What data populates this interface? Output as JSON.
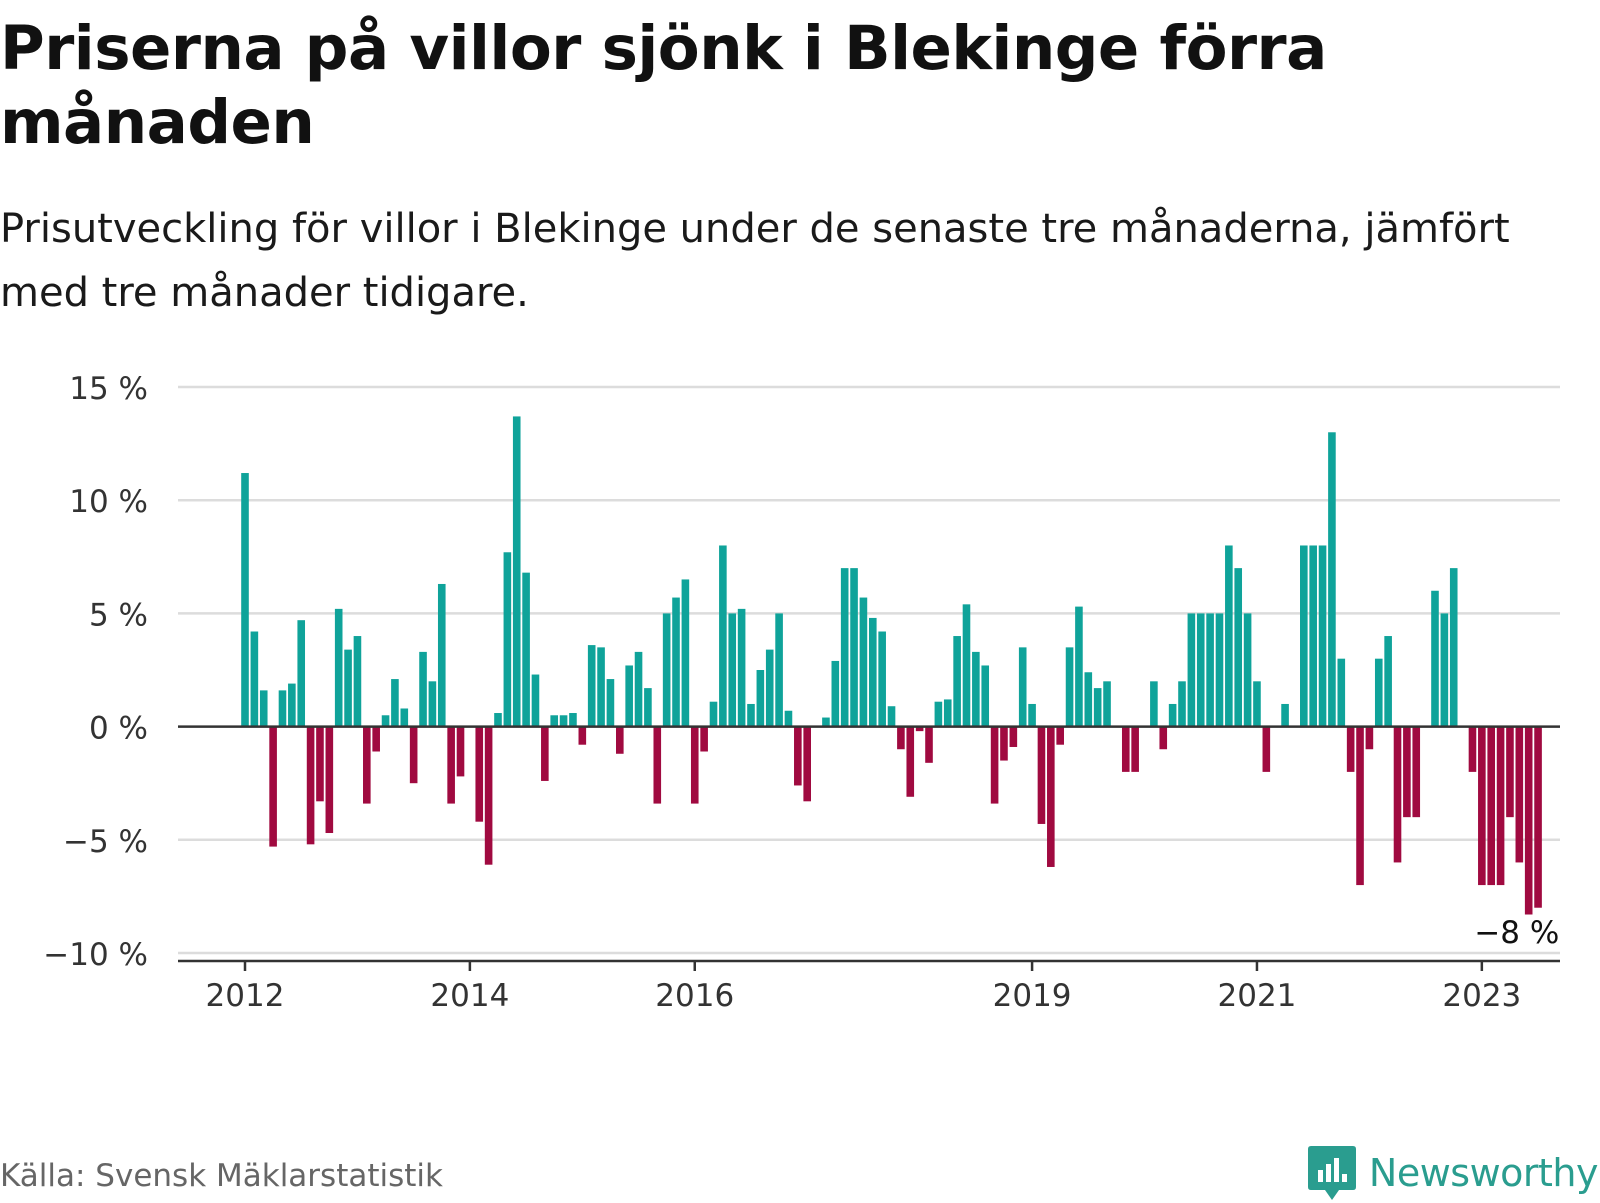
{
  "title": "Priserna på villor sjönk i Blekinge förra månaden",
  "subtitle": "Prisutveckling för villor i Blekinge under de senaste tre månaderna, jämfört med tre månader tidigare.",
  "source": "Källa: Svensk Mäklarstatistik",
  "brand": "Newsworthy",
  "colors": {
    "positive": "#0fa39a",
    "negative": "#a00a40",
    "grid": "#dcdcdc",
    "axis": "#333333",
    "brand": "#2a9d8f"
  },
  "chart_data": {
    "type": "bar",
    "ylim": [
      -10,
      15
    ],
    "yticks": [
      15,
      10,
      5,
      0,
      -5,
      -10
    ],
    "ytick_labels": [
      "15 %",
      "10 %",
      "5 %",
      "0 %",
      "−5 %",
      "−10 %"
    ],
    "x_start": "2012-01",
    "xtick_labels": [
      {
        "label": "2012",
        "month": "2012-01"
      },
      {
        "label": "2014",
        "month": "2014-01"
      },
      {
        "label": "2016",
        "month": "2016-01"
      },
      {
        "label": "2019",
        "month": "2019-01"
      },
      {
        "label": "2021",
        "month": "2021-01"
      },
      {
        "label": "2023",
        "month": "2023-01"
      }
    ],
    "annotation": {
      "text": "−8 %",
      "month": "2023-01"
    },
    "values": [
      11.2,
      4.2,
      1.6,
      -5.3,
      1.6,
      1.9,
      4.7,
      -5.2,
      -3.3,
      -4.7,
      5.2,
      3.4,
      4.0,
      -3.4,
      -1.1,
      0.5,
      2.1,
      0.8,
      -2.5,
      3.3,
      2.0,
      6.3,
      -3.4,
      -2.2,
      0.0,
      -4.2,
      -6.1,
      0.6,
      7.7,
      13.7,
      6.8,
      2.3,
      -2.4,
      0.5,
      0.5,
      0.6,
      -0.8,
      3.6,
      3.5,
      2.1,
      -1.2,
      2.7,
      3.3,
      1.7,
      -3.4,
      5.0,
      5.7,
      6.5,
      -3.4,
      -1.1,
      1.1,
      8.0,
      5.0,
      5.2,
      1.0,
      2.5,
      3.4,
      5.0,
      0.7,
      -2.6,
      -3.3,
      0.0,
      0.4,
      2.9,
      7.0,
      7.0,
      5.7,
      4.8,
      4.2,
      0.9,
      -1.0,
      -3.1,
      -0.2,
      -1.6,
      1.1,
      1.2,
      4.0,
      5.4,
      3.3,
      2.7,
      -3.4,
      -1.5,
      -0.9,
      3.5,
      1.0,
      -4.3,
      -6.2,
      -0.8,
      3.5,
      5.3,
      2.4,
      1.7,
      2.0,
      0.0,
      -2.0,
      -2.0,
      0.0,
      2.0,
      -1.0,
      1.0,
      2.0,
      5.0,
      5.0,
      5.0,
      5.0,
      8.0,
      7.0,
      5.0,
      2.0,
      -2.0,
      0.0,
      1.0,
      0.0,
      8.0,
      8.0,
      8.0,
      13.0,
      3.0,
      -2.0,
      -7.0,
      -1.0,
      3.0,
      4.0,
      -6.0,
      -4.0,
      -4.0,
      0.0,
      6.0,
      5.0,
      7.0,
      0.0,
      -2.0,
      -7.0,
      -7.0,
      -7.0,
      -4.0,
      -6.0,
      -8.3,
      -8.0
    ]
  }
}
